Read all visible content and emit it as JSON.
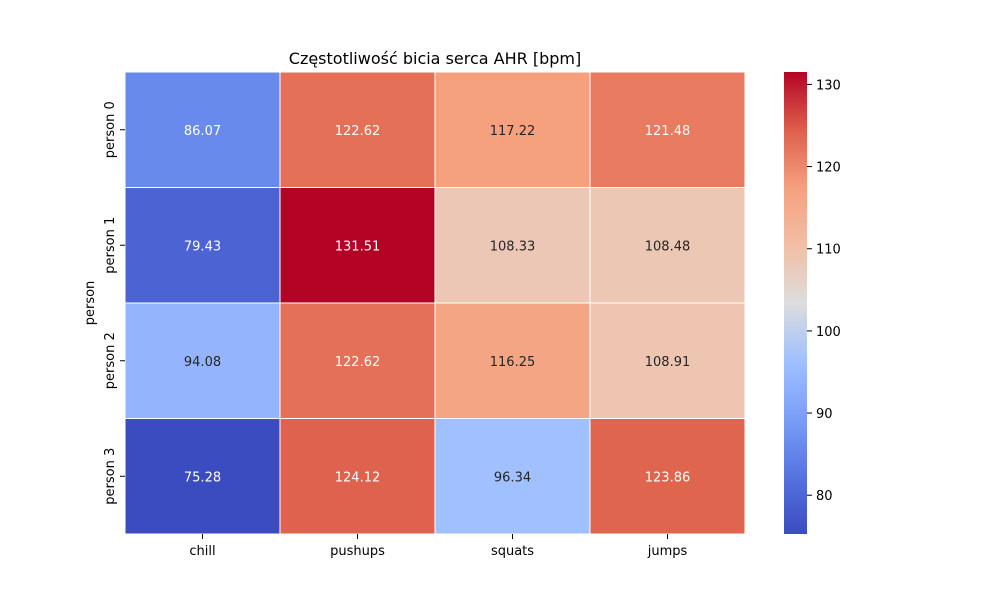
{
  "chart_data": {
    "type": "heatmap",
    "title": "Częstotliwość bicia serca AHR [bpm]",
    "xlabel": "",
    "ylabel": "person",
    "columns": [
      "chill",
      "pushups",
      "squats",
      "jumps"
    ],
    "rows": [
      "person 0",
      "person 1",
      "person 2",
      "person 3"
    ],
    "values": [
      [
        86.07,
        122.62,
        117.22,
        121.48
      ],
      [
        79.43,
        131.51,
        108.33,
        108.48
      ],
      [
        94.08,
        122.62,
        116.25,
        108.91
      ],
      [
        75.28,
        124.12,
        96.34,
        123.86
      ]
    ],
    "value_labels": [
      [
        "86.07",
        "122.62",
        "117.22",
        "121.48"
      ],
      [
        "79.43",
        "131.51",
        "108.33",
        "108.48"
      ],
      [
        "94.08",
        "122.62",
        "116.25",
        "108.91"
      ],
      [
        "75.28",
        "124.12",
        "96.34",
        "123.86"
      ]
    ],
    "colormap": "coolwarm",
    "vmin": 75.28,
    "vmax": 131.51,
    "colorbar": {
      "ticks": [
        80,
        90,
        100,
        110,
        120,
        130
      ],
      "tick_labels": [
        "80",
        "90",
        "100",
        "110",
        "120",
        "130"
      ]
    },
    "grid_lines": true,
    "grid_color": "#ffffff"
  }
}
